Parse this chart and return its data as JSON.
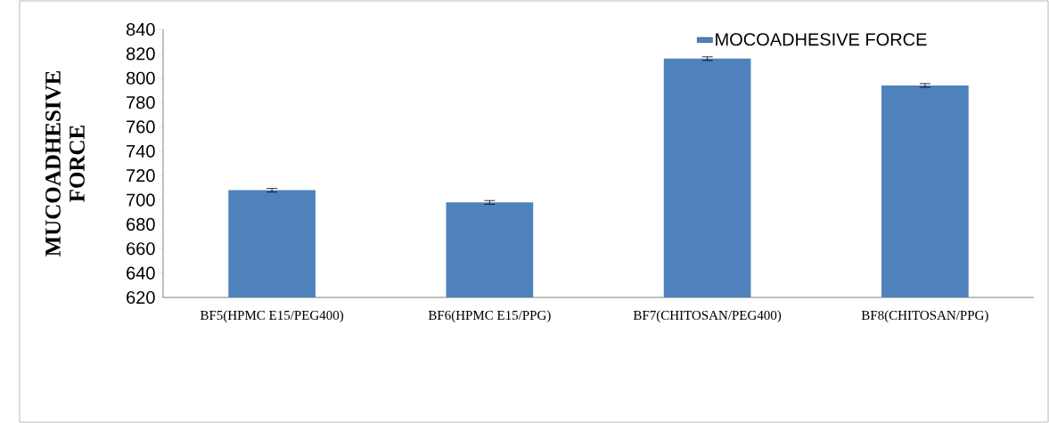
{
  "chart_data": {
    "type": "bar",
    "ylabel": "MUCOADHESIVE FORCE",
    "categories": [
      "BF5(HPMC E15/PEG400)",
      "BF6(HPMC E15/PPG)",
      "BF7(CHITOSAN/PEG400)",
      "BF8(CHITOSAN/PPG)"
    ],
    "series": [
      {
        "name": "MOCOADHESIVE FORCE",
        "color": "#4f81bd",
        "values": [
          708,
          698,
          816,
          794
        ],
        "errors": [
          1.5,
          1.5,
          1.5,
          1.5
        ]
      }
    ],
    "ylim": [
      620,
      840
    ],
    "yticks": [
      620,
      640,
      660,
      680,
      700,
      720,
      740,
      760,
      780,
      800,
      820,
      840
    ],
    "grid": false,
    "legend": "top right"
  }
}
